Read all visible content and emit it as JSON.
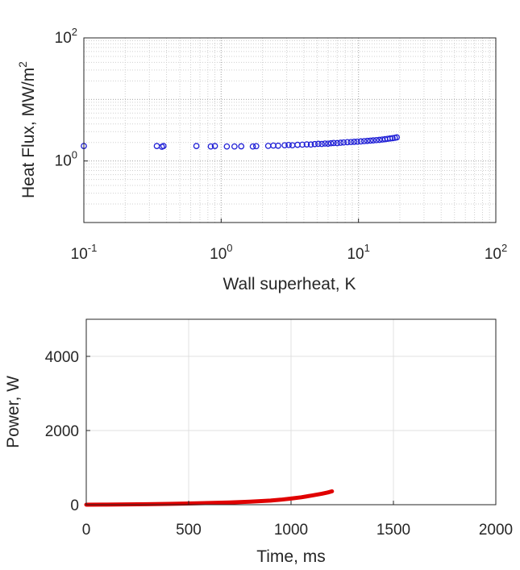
{
  "chart_data": [
    {
      "type": "scatter",
      "xlabel": "Wall superheat, K",
      "ylabel": "Heat Flux, MW/m",
      "ylabel_superscript": "2",
      "x_scale": "log",
      "y_scale": "log",
      "xlim": [
        0.1,
        100
      ],
      "ylim": [
        0.1,
        100
      ],
      "x_ticks": [
        {
          "value": 0.1,
          "base": "10",
          "exp": "-1"
        },
        {
          "value": 1,
          "base": "10",
          "exp": "0"
        },
        {
          "value": 10,
          "base": "10",
          "exp": "1"
        },
        {
          "value": 100,
          "base": "10",
          "exp": "2"
        }
      ],
      "y_ticks": [
        {
          "value": 1,
          "base": "10",
          "exp": "0"
        },
        {
          "value": 100,
          "base": "10",
          "exp": "2"
        }
      ],
      "grid": "major and minor, dotted",
      "marker": "open circle",
      "color": "#1f1fd6",
      "x": [
        0.1,
        0.34,
        0.37,
        0.38,
        0.66,
        0.84,
        0.9,
        1.1,
        1.25,
        1.4,
        1.7,
        1.8,
        2.2,
        2.4,
        2.6,
        2.9,
        3.1,
        3.3,
        3.6,
        3.9,
        4.2,
        4.5,
        4.8,
        5.1,
        5.4,
        5.7,
        6.0,
        6.3,
        6.6,
        7.0,
        7.4,
        7.8,
        8.3,
        8.8,
        9.3,
        9.8,
        10.4,
        11.0,
        11.6,
        12.2,
        12.8,
        13.5,
        14.2,
        14.9,
        15.6,
        16.3,
        17.0,
        17.7,
        18.4,
        19.0
      ],
      "y": [
        1.75,
        1.75,
        1.7,
        1.75,
        1.75,
        1.72,
        1.75,
        1.72,
        1.72,
        1.73,
        1.72,
        1.74,
        1.76,
        1.78,
        1.77,
        1.8,
        1.82,
        1.8,
        1.83,
        1.84,
        1.86,
        1.85,
        1.88,
        1.9,
        1.89,
        1.92,
        1.91,
        1.94,
        1.96,
        1.95,
        1.98,
        2.0,
        2.02,
        2.03,
        2.05,
        2.06,
        2.08,
        2.1,
        2.12,
        2.14,
        2.16,
        2.18,
        2.2,
        2.23,
        2.26,
        2.29,
        2.32,
        2.35,
        2.38,
        2.42
      ]
    },
    {
      "type": "line",
      "xlabel": "Time, ms",
      "ylabel": "Power, W",
      "xlim": [
        0,
        2000
      ],
      "ylim": [
        0,
        5000
      ],
      "x_ticks": [
        0,
        500,
        1000,
        1500,
        2000
      ],
      "y_ticks": [
        0,
        2000,
        4000
      ],
      "grid": "major, solid light gray",
      "color": "#e00000",
      "x": [
        0,
        100,
        200,
        300,
        400,
        500,
        600,
        700,
        800,
        900,
        950,
        1000,
        1050,
        1100,
        1150,
        1180,
        1200
      ],
      "y": [
        0,
        3,
        8,
        14,
        22,
        32,
        45,
        60,
        80,
        110,
        135,
        165,
        200,
        245,
        295,
        330,
        360
      ]
    }
  ]
}
